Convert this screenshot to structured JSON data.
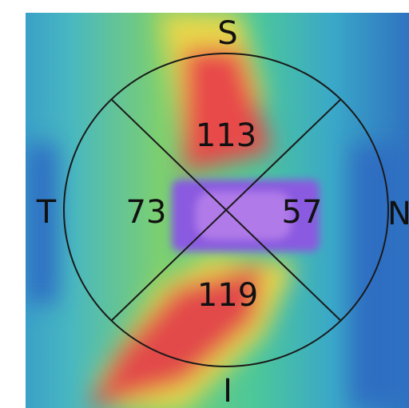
{
  "sectors": [
    {
      "label": "S",
      "value": 113
    },
    {
      "label": "T",
      "value": 73
    },
    {
      "label": "N",
      "value": 57
    },
    {
      "label": "I",
      "value": 119
    }
  ]
}
